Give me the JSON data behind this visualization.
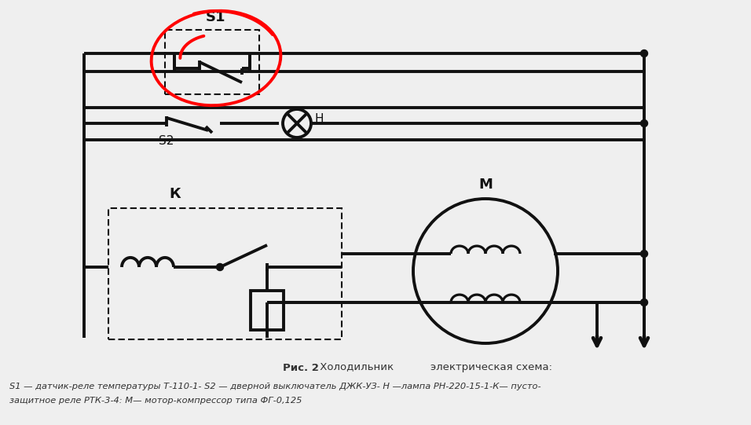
{
  "bg_color": "#efefef",
  "line_color": "#111111",
  "lw": 2.8,
  "lw_thin": 1.5,
  "caption_bold": "Рис. 2",
  "caption_normal": " Холодильник           электрическая схема:",
  "legend_line1": "S1 — датчик-реле температуры Т-110-1- S2 — дверной выключатель ДЖК-УЗ- Н —лампа РН-220-15-1-К— пусто-",
  "legend_line2": "защитное реле РТК-3-4: М— мотор-компрессор типа ФГ-0,125"
}
